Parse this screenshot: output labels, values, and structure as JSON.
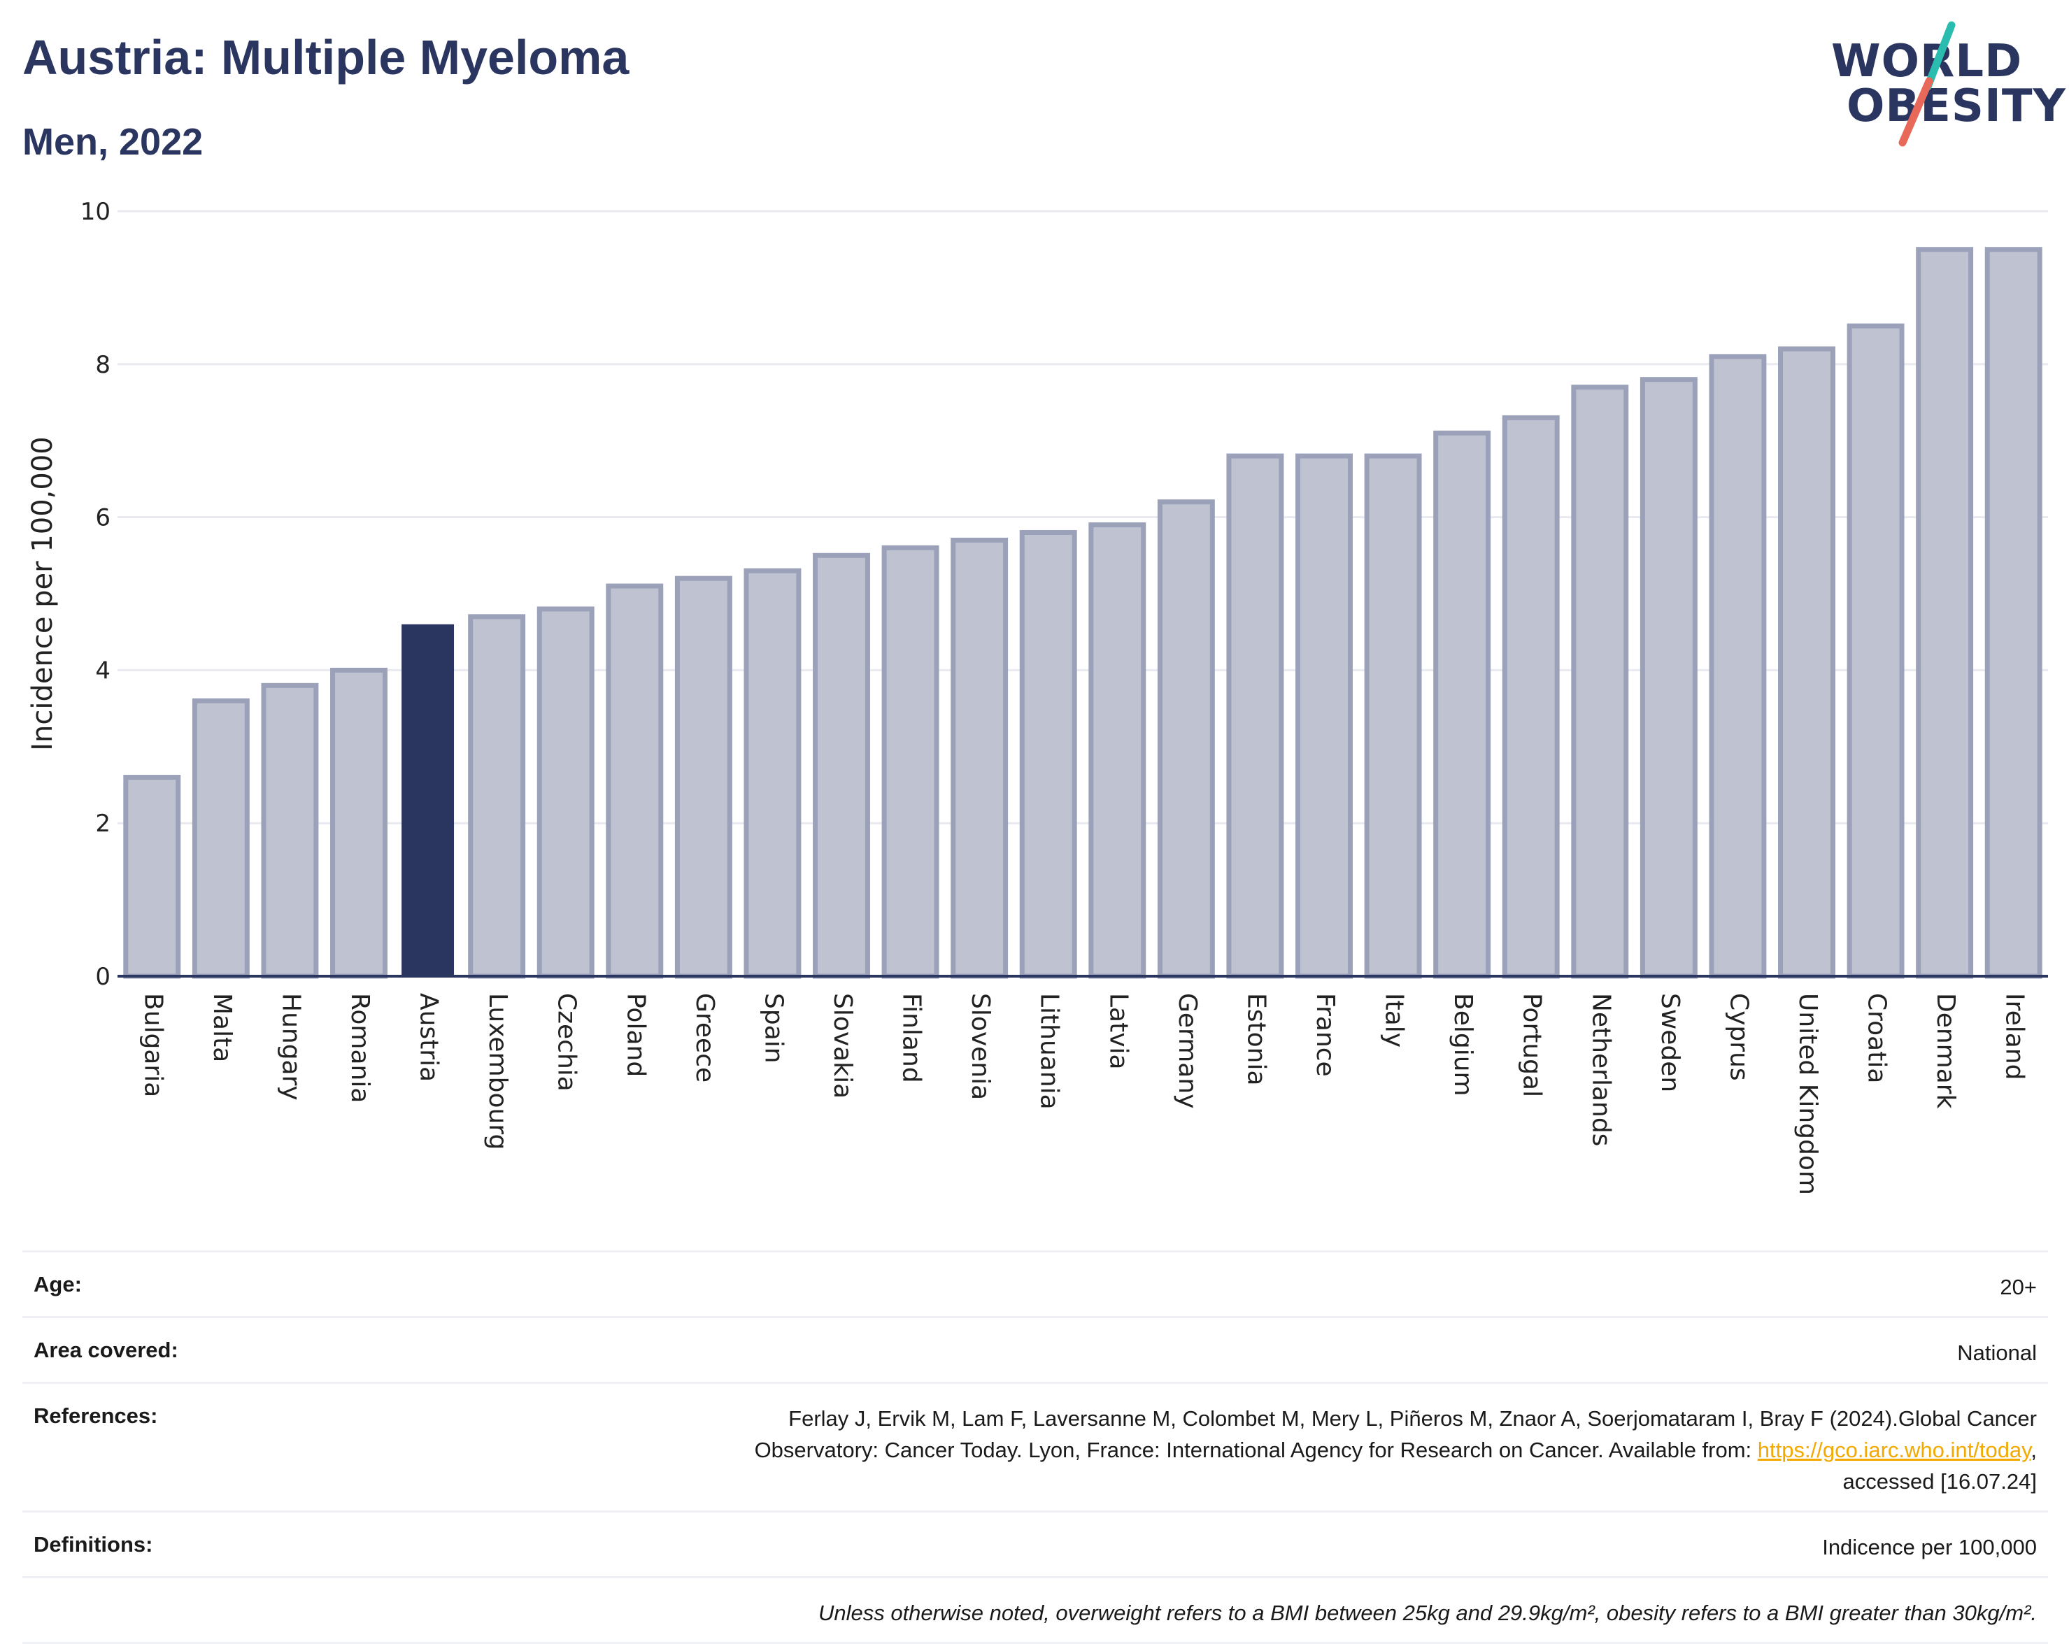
{
  "header": {
    "title": "Austria: Multiple Myeloma",
    "subtitle": "Men, 2022"
  },
  "logo": {
    "line1": "WORLD",
    "line2": "OBESITY",
    "slash_colors": [
      "#2bbcb0",
      "#e8685a"
    ]
  },
  "colors": {
    "highlight": "#2a3560",
    "bar_fill": "#bfc3d1",
    "bar_stroke": "#9aa1b9",
    "grid": "#e8eaf0",
    "axis": "#2a3560"
  },
  "chart_data": {
    "type": "bar",
    "ylabel": "Incidence per 100,000",
    "ylim": [
      0,
      10
    ],
    "yticks": [
      0,
      2,
      4,
      6,
      8,
      10
    ],
    "grid": true,
    "highlight": "Austria",
    "categories": [
      "Bulgaria",
      "Malta",
      "Hungary",
      "Romania",
      "Austria",
      "Luxembourg",
      "Czechia",
      "Poland",
      "Greece",
      "Spain",
      "Slovakia",
      "Finland",
      "Slovenia",
      "Lithuania",
      "Latvia",
      "Germany",
      "Estonia",
      "France",
      "Italy",
      "Belgium",
      "Portugal",
      "Netherlands",
      "Sweden",
      "Cyprus",
      "United Kingdom",
      "Croatia",
      "Denmark",
      "Ireland"
    ],
    "values": [
      2.6,
      3.6,
      3.8,
      4.0,
      4.6,
      4.7,
      4.8,
      5.1,
      5.2,
      5.3,
      5.5,
      5.6,
      5.7,
      5.8,
      5.9,
      6.2,
      6.8,
      6.8,
      6.8,
      7.1,
      7.3,
      7.7,
      7.8,
      8.1,
      8.2,
      8.5,
      9.5,
      9.5
    ]
  },
  "meta": {
    "age_label": "Age:",
    "age_value": "20+",
    "area_label": "Area covered:",
    "area_value": "National",
    "ref_label": "References:",
    "ref_text_1": "Ferlay J, Ervik M, Lam F, Laversanne M, Colombet M, Mery L, Piñeros M, Znaor A, Soerjomataram I, Bray F (2024).Global Cancer",
    "ref_text_2": "Observatory: Cancer Today. Lyon, France: International Agency for Research on Cancer. Available from: ",
    "ref_link": "https://gco.iarc.who.int/today",
    "ref_text_3": ",",
    "ref_text_4": "accessed [16.07.24]",
    "def_label": "Definitions:",
    "def_value": "Indicence per 100,000",
    "note": "Unless otherwise noted, overweight refers to a BMI between 25kg and 29.9kg/m², obesity refers to a BMI greater than 30kg/m²."
  }
}
